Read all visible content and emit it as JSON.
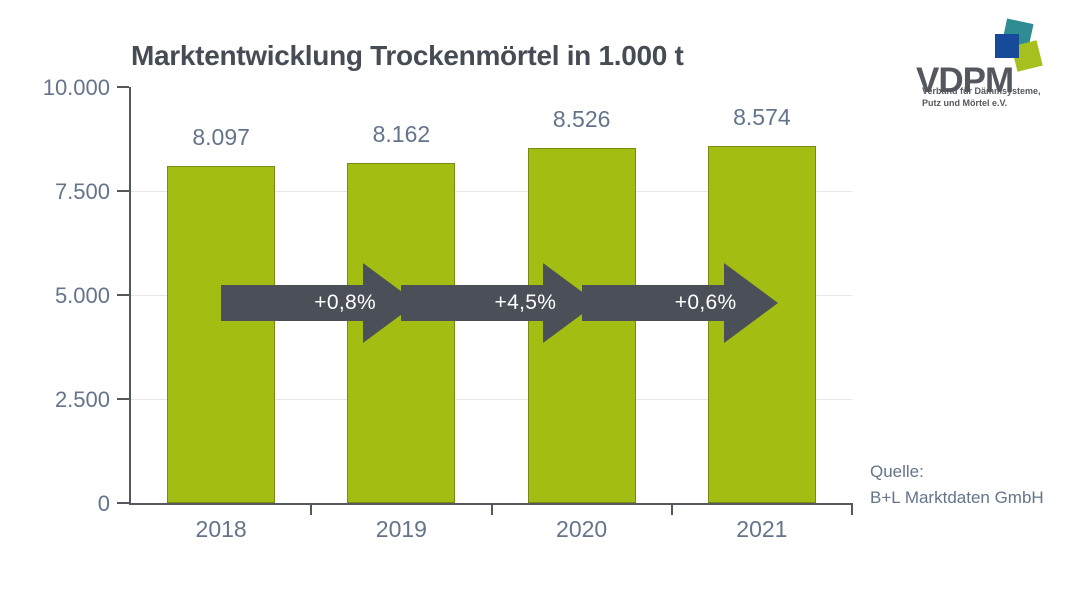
{
  "slide": {
    "title": "Marktentwicklung Trockenmörtel in 1.000 t",
    "source": {
      "label": "Quelle:",
      "name": "B+L Marktdaten GmbH"
    }
  },
  "logo": {
    "acronym": "VDPM",
    "tagline_line1": "Verband für Dämmsysteme,",
    "tagline_line2": "Putz und Mörtel e.V.",
    "square_colors": {
      "teal": "#2e8c92",
      "blue": "#174a99",
      "green": "#a6c01e"
    }
  },
  "chart_data": {
    "type": "bar",
    "title": "Marktentwicklung Trockenmörtel in 1.000 t",
    "unit": "1.000 t",
    "categories": [
      "2018",
      "2019",
      "2020",
      "2021"
    ],
    "values": [
      8097,
      8162,
      8526,
      8574
    ],
    "bar_labels": [
      "8.097",
      "8.162",
      "8.526",
      "8.574"
    ],
    "growth_arrows": [
      {
        "from": "2018",
        "to": "2019",
        "label": "+0,8%"
      },
      {
        "from": "2019",
        "to": "2020",
        "label": "+4,5%"
      },
      {
        "from": "2020",
        "to": "2021",
        "label": "+0,6%"
      }
    ],
    "ylim": [
      0,
      10000
    ],
    "yticks": [
      0,
      2500,
      5000,
      7500,
      10000
    ],
    "ytick_labels": [
      "0",
      "2.500",
      "5.000",
      "7.500",
      "10.000"
    ],
    "grid": "horizontal-light",
    "legend": "none",
    "colors": {
      "bar": "#a3bd13",
      "bar_border": "#7a8814",
      "arrow": "#4a4f58",
      "axis": "#53575e",
      "grid": "#e7e7e7",
      "label_text": "#64748a",
      "title_text": "#454c54"
    }
  }
}
